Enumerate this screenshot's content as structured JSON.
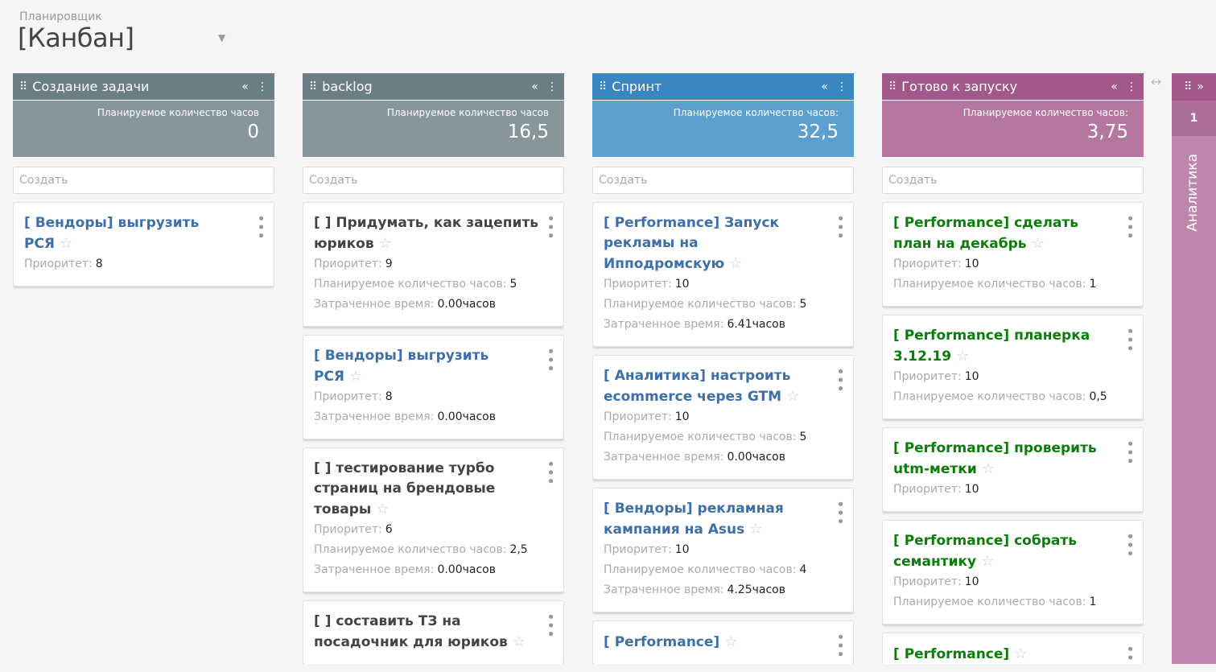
{
  "breadcrumb": "Планировщик",
  "title": "[Канбан]",
  "create_placeholder": "Создать",
  "columns": [
    {
      "name": "Создание задачи",
      "summary_label": "Планируемое количество часов",
      "summary_value": "0",
      "header_color": "#6b7d85",
      "summary_color": "#87969c",
      "title_color": "#3d6fa8",
      "cards": [
        {
          "title": "[          Вендоры] выгрузить РСЯ",
          "rows": [
            {
              "label": "Приоритет:",
              "value": "8"
            }
          ]
        }
      ]
    },
    {
      "name": "backlog",
      "summary_label": "Планируемое количество часов",
      "summary_value": "16,5",
      "header_color": "#6b7d85",
      "summary_color": "#87969c",
      "title_color": "#444444",
      "cards": [
        {
          "title": "[        ] Придумать, как зацепить юриков",
          "rows": [
            {
              "label": "Приоритет:",
              "value": "9"
            },
            {
              "label": "Планируемое количество часов:",
              "value": "5"
            },
            {
              "label": "Затраченное время:",
              "value": "0.00часов"
            }
          ]
        },
        {
          "title": "[          Вендоры] выгрузить РСЯ",
          "color": "#3d6fa8",
          "rows": [
            {
              "label": "Приоритет:",
              "value": "8"
            },
            {
              "label": "Затраченное время:",
              "value": "0.00часов"
            }
          ]
        },
        {
          "title": "[        ] тестирование турбо страниц на брендовые товары",
          "rows": [
            {
              "label": "Приоритет:",
              "value": "6"
            },
            {
              "label": "Планируемое количество часов:",
              "value": "2,5"
            },
            {
              "label": "Затраченное время:",
              "value": "0.00часов"
            }
          ]
        },
        {
          "title": "[        ] составить ТЗ на посадочник для юриков",
          "rows": []
        }
      ]
    },
    {
      "name": "Спринт",
      "summary_label": "Планируемое количество часов:",
      "summary_value": "32,5",
      "header_color": "#3a86c0",
      "summary_color": "#5ba0cf",
      "title_color": "#3d6fa8",
      "cards": [
        {
          "title": "[          Performance] Запуск рекламы на Ипподромскую",
          "rows": [
            {
              "label": "Приоритет:",
              "value": "10"
            },
            {
              "label": "Планируемое количество часов:",
              "value": "5"
            },
            {
              "label": "Затраченное время:",
              "value": "6.41часов"
            }
          ]
        },
        {
          "title": "[          Аналитика] настроить ecommerce через GTM",
          "rows": [
            {
              "label": "Приоритет:",
              "value": "10"
            },
            {
              "label": "Планируемое количество часов:",
              "value": "5"
            },
            {
              "label": "Затраченное время:",
              "value": "0.00часов"
            }
          ]
        },
        {
          "title": "[          Вендоры] рекламная кампания на Asus",
          "rows": [
            {
              "label": "Приоритет:",
              "value": "10"
            },
            {
              "label": "Планируемое количество часов:",
              "value": "4"
            },
            {
              "label": "Затраченное время:",
              "value": "4.25часов"
            }
          ]
        },
        {
          "title": "[          Performance]",
          "rows": []
        }
      ]
    },
    {
      "name": "Готово к запуску",
      "summary_label": "Планируемое количество часов:",
      "summary_value": "3,75",
      "header_color": "#a2598a",
      "summary_color": "#b5779f",
      "title_color": "#0a7d0a",
      "cards": [
        {
          "title": "[          Performance] сделать план на декабрь",
          "rows": [
            {
              "label": "Приоритет:",
              "value": "10"
            },
            {
              "label": "Планируемое количество часов:",
              "value": "1"
            }
          ]
        },
        {
          "title": "[          Performance] планерка 3.12.19",
          "rows": [
            {
              "label": "Приоритет:",
              "value": "10"
            },
            {
              "label": "Планируемое количество часов:",
              "value": "0,5"
            }
          ]
        },
        {
          "title": "[          Performance] проверить utm-метки",
          "rows": [
            {
              "label": "Приоритет:",
              "value": "10"
            }
          ]
        },
        {
          "title": "[          Performance] собрать семантику",
          "rows": [
            {
              "label": "Приоритет:",
              "value": "10"
            },
            {
              "label": "Планируемое количество часов:",
              "value": "1"
            }
          ]
        },
        {
          "title": "[          Performance]",
          "rows": []
        }
      ]
    }
  ],
  "collapsed_column": {
    "name": "Аналитика",
    "count": "1"
  }
}
